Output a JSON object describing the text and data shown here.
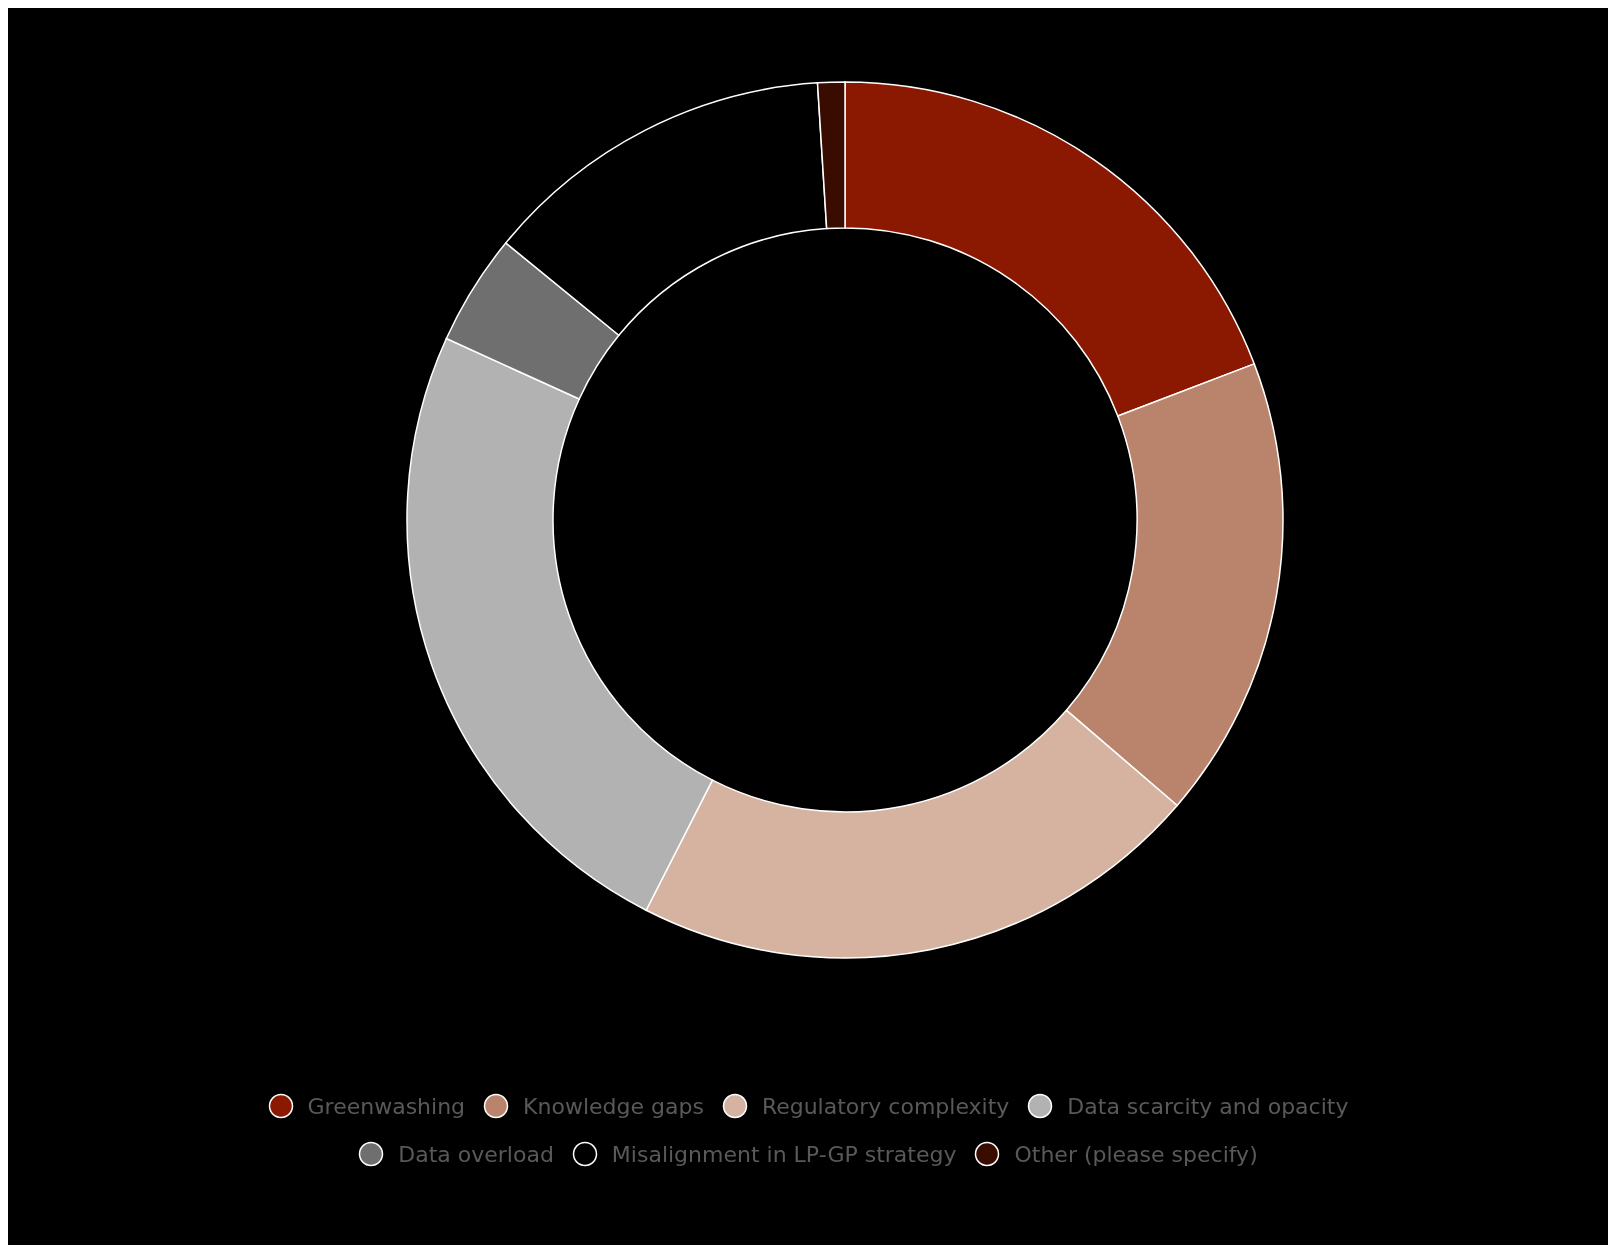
{
  "chart_data": {
    "type": "donut",
    "categories": [
      "Greenwashing",
      "Knowledge gaps",
      "Regulatory complexity",
      "Data scarcity and opacity",
      "Data overload",
      "Misalignment in LP-GP strategy",
      "Other (please specify)"
    ],
    "values": [
      19.2,
      17.1,
      21.2,
      24.3,
      4.1,
      13.1,
      1.0
    ],
    "colors": [
      "#8b1800",
      "#b9846b",
      "#d6b3a1",
      "#b2b2b2",
      "#6f6f6f",
      "#000000",
      "#3a0c00"
    ],
    "legend": "bottom"
  }
}
